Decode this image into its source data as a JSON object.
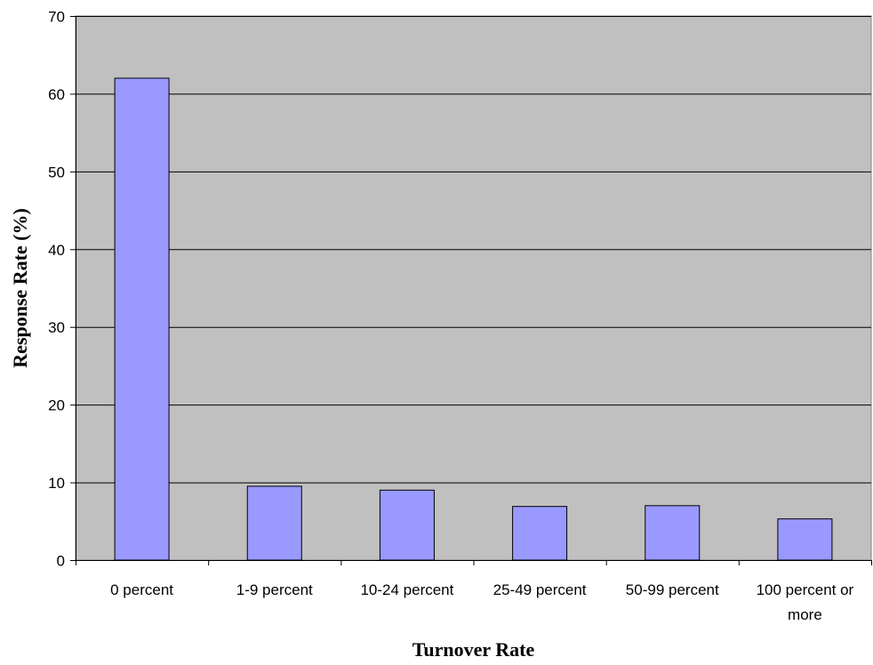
{
  "chart_data": {
    "type": "bar",
    "categories": [
      "0 percent",
      "1-9 percent",
      "10-24 percent",
      "25-49 percent",
      "50-99 percent",
      "100 percent or more"
    ],
    "category_lines": [
      [
        "0 percent"
      ],
      [
        "1-9 percent"
      ],
      [
        "10-24 percent"
      ],
      [
        "25-49 percent"
      ],
      [
        "50-99 percent"
      ],
      [
        "100 percent or",
        "more"
      ]
    ],
    "values": [
      62,
      9.5,
      9,
      6.9,
      7,
      5.3
    ],
    "title": "",
    "xlabel": "Turnover Rate",
    "ylabel": "Response Rate (%)",
    "ylim": [
      0,
      70
    ],
    "yticks": [
      0,
      10,
      20,
      30,
      40,
      50,
      60,
      70
    ],
    "grid": true,
    "legend": "none",
    "colors": {
      "bar": "#9999ff",
      "plot_background": "#c0c0c0",
      "gridline": "#000000"
    }
  }
}
